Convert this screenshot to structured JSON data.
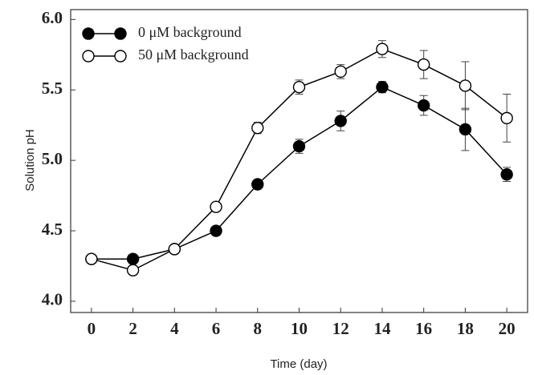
{
  "chart_data": {
    "type": "line",
    "x_label": "Time (day)",
    "y_label": "Solution pH",
    "x": [
      0,
      2,
      4,
      6,
      8,
      10,
      12,
      14,
      16,
      18,
      20
    ],
    "series": [
      {
        "name": "0 μM background",
        "color": "#000000",
        "marker_fill": "#000000",
        "values": [
          4.3,
          4.3,
          4.37,
          4.5,
          4.83,
          5.1,
          5.28,
          5.52,
          5.39,
          5.22,
          4.9
        ],
        "errors": [
          0,
          0,
          0,
          0,
          0.02,
          0.05,
          0.07,
          0.04,
          0.07,
          0.15,
          0.05
        ]
      },
      {
        "name": "50 μM background",
        "color": "#000000",
        "marker_fill": "#ffffff",
        "values": [
          4.3,
          4.22,
          4.37,
          4.67,
          5.23,
          5.52,
          5.63,
          5.79,
          5.68,
          5.53,
          5.3
        ],
        "errors": [
          0,
          0,
          0,
          0,
          0.04,
          0.05,
          0.05,
          0.06,
          0.1,
          0.17,
          0.17
        ]
      }
    ],
    "xlim": [
      -1,
      21
    ],
    "xticks": [
      0,
      2,
      4,
      6,
      8,
      10,
      12,
      14,
      16,
      18,
      20
    ],
    "ylim": [
      3.92,
      6.07
    ],
    "yticks": [
      {
        "value": 4,
        "label": "4.0"
      },
      4.5,
      {
        "value": 5,
        "label": "5.0"
      },
      5.5,
      {
        "value": 6,
        "label": "6.0"
      }
    ],
    "legend": "upper left"
  }
}
